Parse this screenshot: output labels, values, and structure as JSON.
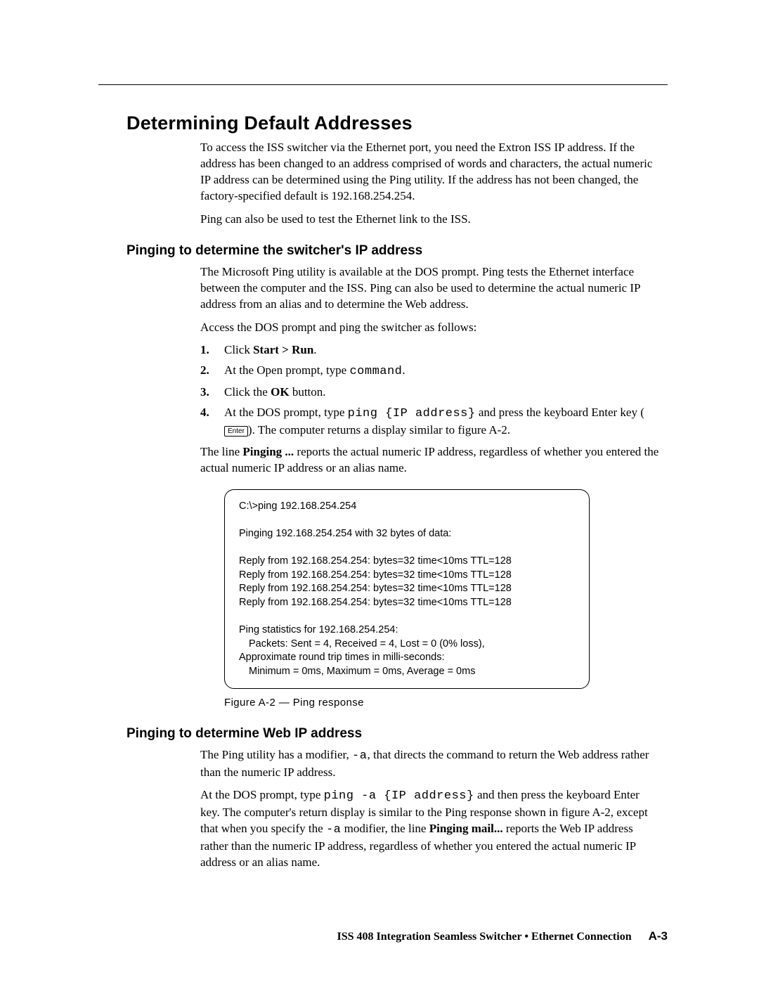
{
  "headings": {
    "h1": "Determining Default Addresses",
    "h2a": "Pinging to determine the switcher's IP address",
    "h2b": "Pinging to determine Web IP address"
  },
  "intro": {
    "p1": "To access the ISS switcher via the Ethernet port, you need the Extron ISS IP address. If the address has been changed to an address comprised of words and characters, the actual numeric IP address can be determined using the Ping utility.  If the address has not been changed, the factory-specified default is 192.168.254.254.",
    "p2": "Ping can also be used to test the Ethernet link to the ISS."
  },
  "sectionA": {
    "p1": "The Microsoft Ping utility is available at the DOS prompt.  Ping tests the Ethernet interface between the computer and the ISS.  Ping can also be used to determine the actual numeric IP address from an alias and to determine the Web address.",
    "p2": "Access the DOS prompt and ping the switcher as follows:",
    "steps": {
      "n1": "1",
      "s1a": "Click ",
      "s1b": "Start > Run",
      "s1c": ".",
      "n2": "2",
      "s2a": "At the Open prompt, type ",
      "s2b": "command",
      "s2c": ".",
      "n3": "3",
      "s3a": "Click the ",
      "s3b": "OK",
      "s3c": " button.",
      "n4": "4",
      "s4a": "At the DOS prompt, type ",
      "s4b": "ping {IP address}",
      "s4c": " and press the keyboard Enter key (",
      "s4key": "Enter",
      "s4d": ").  The computer returns a display similar to figure A-2.",
      "sub_a": "The line ",
      "sub_b": "Pinging ...",
      "sub_c": " reports the actual numeric IP address, regardless of whether you entered the actual numeric IP address or an alias name."
    },
    "code": {
      "l1": "C:\\>ping 192.168.254.254",
      "l2": "Pinging 192.168.254.254 with 32 bytes of data:",
      "l3": "Reply from 192.168.254.254: bytes=32 time<10ms TTL=128",
      "l4": "Reply from 192.168.254.254: bytes=32 time<10ms TTL=128",
      "l5": "Reply from 192.168.254.254: bytes=32 time<10ms TTL=128",
      "l6": "Reply from 192.168.254.254: bytes=32 time<10ms TTL=128",
      "l7": "Ping statistics for 192.168.254.254:",
      "l8": "Packets: Sent = 4, Received = 4, Lost = 0 (0% loss),",
      "l9": "Approximate round trip times in milli-seconds:",
      "l10": "Minimum = 0ms, Maximum = 0ms, Average = 0ms"
    },
    "figcap": "Figure A-2 — Ping response"
  },
  "sectionB": {
    "p1a": "The Ping utility has a modifier, ",
    "p1b": "-a",
    "p1c": ", that directs the command to return the Web address rather than the numeric IP address.",
    "p2a": "At the DOS prompt, type ",
    "p2b": "ping -a {IP address}",
    "p2c": " and then press the keyboard Enter key.  The computer's return display is similar to the Ping response shown in figure A-2, except that when you specify the ",
    "p2d": "-a",
    "p2e": " modifier, the line ",
    "p2f": "Pinging mail...",
    "p2g": " reports the Web IP address rather than the numeric IP address, regardless of whether you entered the actual numeric IP address or an alias name."
  },
  "footer": {
    "text": "ISS 408 Integration Seamless Switcher • Ethernet Connection",
    "page": "A-3"
  }
}
